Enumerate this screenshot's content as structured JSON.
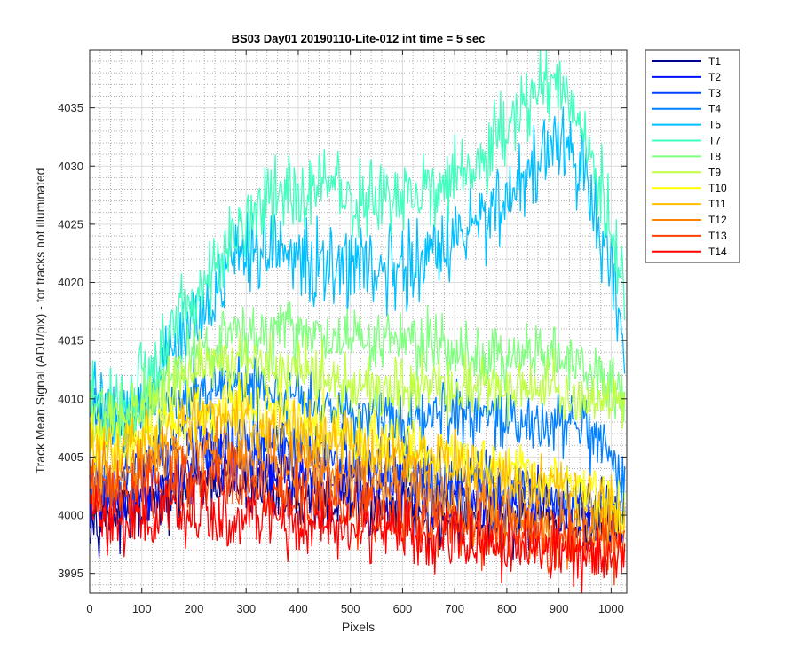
{
  "chart_data": {
    "type": "line",
    "title": "BS03 Day01 20190110-Lite-012 int time = 5 sec",
    "xlabel": "Pixels",
    "ylabel": "Track Mean Signal (ADU/pix) - for tracks not illuminated",
    "xlim": [
      0,
      1030
    ],
    "ylim": [
      3993.3,
      4040.0
    ],
    "xticks": [
      0,
      100,
      200,
      300,
      400,
      500,
      600,
      700,
      800,
      900,
      1000
    ],
    "yticks": [
      3995,
      4000,
      4005,
      4010,
      4015,
      4020,
      4025,
      4030,
      4035
    ],
    "grid": true,
    "legend_position": "outside-right",
    "x_samples": [
      0,
      50,
      100,
      150,
      200,
      250,
      300,
      350,
      400,
      450,
      500,
      550,
      600,
      650,
      700,
      750,
      800,
      850,
      900,
      950,
      1000,
      1027
    ],
    "series": [
      {
        "name": "T1",
        "color": "#00008f",
        "values": [
          4000.5,
          4000.0,
          4000.5,
          4001.5,
          4002.5,
          4002.5,
          4002.5,
          4002.0,
          4001.5,
          4001.2,
          4001.0,
          4000.6,
          4000.3,
          4000.0,
          3999.8,
          3999.6,
          3999.4,
          3999.3,
          3999.2,
          3999.1,
          3999.0,
          3999.0
        ]
      },
      {
        "name": "T2",
        "color": "#0010ff",
        "values": [
          4001.5,
          4001.0,
          4002.0,
          4003.5,
          4004.0,
          4004.5,
          4004.0,
          4004.0,
          4003.5,
          4003.5,
          4003.0,
          4002.5,
          4002.5,
          4002.0,
          4002.0,
          4001.5,
          4001.0,
          4001.0,
          4001.0,
          4000.5,
          4000.5,
          4000.0
        ]
      },
      {
        "name": "T3",
        "color": "#0040ff",
        "values": [
          4003.0,
          4002.5,
          4004.0,
          4005.5,
          4006.5,
          4006.5,
          4006.0,
          4006.0,
          4005.5,
          4005.0,
          4004.5,
          4004.0,
          4003.5,
          4003.0,
          4003.0,
          4002.5,
          4002.0,
          4002.0,
          4001.5,
          4001.0,
          4000.5,
          4000.0
        ]
      },
      {
        "name": "T4",
        "color": "#0080ff",
        "values": [
          4008.5,
          4008.0,
          4008.5,
          4009.5,
          4010.5,
          4011.0,
          4011.0,
          4010.5,
          4010.0,
          4009.5,
          4009.0,
          4008.8,
          4008.5,
          4008.5,
          4008.5,
          4008.2,
          4008.0,
          4008.0,
          4008.0,
          4007.0,
          4004.5,
          4002.0
        ]
      },
      {
        "name": "T5",
        "color": "#00bfff",
        "values": [
          4010.0,
          4008.5,
          4010.0,
          4013.5,
          4017.5,
          4020.0,
          4022.0,
          4023.0,
          4022.0,
          4021.0,
          4021.5,
          4021.5,
          4021.0,
          4022.0,
          4023.5,
          4025.5,
          4027.5,
          4030.0,
          4031.5,
          4029.5,
          4020.0,
          4013.5
        ]
      },
      {
        "name": "T7",
        "color": "#40ffbf",
        "values": [
          4010.0,
          4009.0,
          4011.0,
          4015.0,
          4019.0,
          4022.0,
          4025.0,
          4027.5,
          4027.5,
          4029.0,
          4027.0,
          4027.0,
          4027.5,
          4028.0,
          4029.0,
          4030.0,
          4033.0,
          4036.0,
          4037.0,
          4033.5,
          4024.0,
          4019.0
        ]
      },
      {
        "name": "T8",
        "color": "#80ff80",
        "values": [
          4009.0,
          4008.5,
          4009.5,
          4011.5,
          4013.5,
          4015.0,
          4015.5,
          4015.5,
          4015.5,
          4015.0,
          4015.0,
          4015.0,
          4015.0,
          4014.5,
          4014.0,
          4013.5,
          4013.5,
          4014.0,
          4014.0,
          4012.5,
          4011.0,
          4010.5
        ]
      },
      {
        "name": "T9",
        "color": "#bfff40",
        "values": [
          4008.5,
          4008.0,
          4009.0,
          4011.0,
          4012.5,
          4013.0,
          4013.0,
          4012.5,
          4012.5,
          4012.0,
          4011.5,
          4011.0,
          4011.0,
          4011.0,
          4011.0,
          4011.0,
          4011.0,
          4011.0,
          4010.5,
          4010.0,
          4010.0,
          4010.0
        ]
      },
      {
        "name": "T10",
        "color": "#ffff00",
        "values": [
          4006.0,
          4005.5,
          4006.5,
          4008.0,
          4009.0,
          4009.5,
          4009.5,
          4009.0,
          4008.5,
          4007.5,
          4007.0,
          4006.5,
          4006.0,
          4005.5,
          4005.0,
          4004.5,
          4004.0,
          4003.5,
          4003.0,
          4002.0,
          4001.0,
          4000.5
        ]
      },
      {
        "name": "T11",
        "color": "#ffbf00",
        "values": [
          4005.5,
          4005.0,
          4006.0,
          4007.0,
          4008.0,
          4008.5,
          4008.0,
          4007.5,
          4007.0,
          4006.5,
          4006.0,
          4005.5,
          4005.0,
          4004.5,
          4004.0,
          4003.5,
          4003.0,
          4002.5,
          4002.0,
          4001.0,
          4000.0,
          3999.5
        ]
      },
      {
        "name": "T12",
        "color": "#ff8000",
        "values": [
          4003.5,
          4003.0,
          4004.0,
          4005.0,
          4005.5,
          4005.5,
          4005.0,
          4004.5,
          4004.0,
          4003.5,
          4003.0,
          4002.5,
          4002.0,
          4001.5,
          4001.0,
          4000.5,
          4000.0,
          3999.5,
          3999.0,
          3998.5,
          3998.0,
          3997.5
        ]
      },
      {
        "name": "T13",
        "color": "#ff4000",
        "values": [
          4002.0,
          4001.5,
          4002.0,
          4002.5,
          4003.0,
          4003.0,
          4002.5,
          4002.0,
          4001.5,
          4001.0,
          4000.5,
          4000.0,
          3999.8,
          3999.5,
          3999.0,
          3998.8,
          3998.5,
          3998.0,
          3997.8,
          3997.5,
          3997.0,
          3996.5
        ]
      },
      {
        "name": "T14",
        "color": "#ff0000",
        "values": [
          4000.5,
          3999.5,
          3999.5,
          4000.0,
          4000.0,
          4000.0,
          3999.8,
          3999.5,
          3999.2,
          3999.0,
          3998.8,
          3998.5,
          3998.2,
          3998.0,
          3997.8,
          3997.5,
          3997.2,
          3997.0,
          3996.8,
          3996.5,
          3996.2,
          3996.0
        ]
      }
    ]
  }
}
